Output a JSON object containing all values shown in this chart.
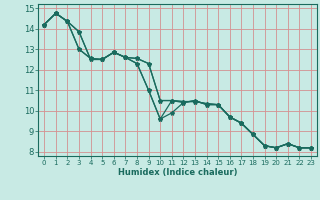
{
  "xlabel": "Humidex (Indice chaleur)",
  "xlim": [
    -0.5,
    23.5
  ],
  "ylim": [
    7.8,
    15.2
  ],
  "yticks": [
    8,
    9,
    10,
    11,
    12,
    13,
    14,
    15
  ],
  "xticks": [
    0,
    1,
    2,
    3,
    4,
    5,
    6,
    7,
    8,
    9,
    10,
    11,
    12,
    13,
    14,
    15,
    16,
    17,
    18,
    19,
    20,
    21,
    22,
    23
  ],
  "bg_color": "#c8eae4",
  "grid_color_red": "#e88888",
  "grid_color_teal": "#88cccc",
  "line_color": "#1a6b5e",
  "series": [
    {
      "x": [
        0,
        1,
        2,
        3,
        4,
        5,
        6,
        7,
        8,
        9,
        10,
        11,
        12,
        13,
        14,
        15,
        16,
        17,
        18,
        19,
        20,
        21,
        22,
        23
      ],
      "y": [
        14.2,
        14.75,
        14.35,
        13.85,
        12.5,
        12.5,
        12.85,
        12.6,
        12.55,
        12.3,
        10.5,
        10.5,
        10.45,
        10.45,
        10.35,
        10.3,
        9.7,
        9.4,
        8.85,
        8.3,
        8.2,
        8.4,
        8.2,
        8.2
      ]
    },
    {
      "x": [
        0,
        1,
        2,
        3,
        4,
        5,
        6,
        7,
        8,
        9,
        10,
        11,
        12,
        13,
        14,
        15,
        16,
        17,
        18,
        19,
        20,
        21,
        22,
        23
      ],
      "y": [
        14.2,
        14.75,
        14.35,
        13.85,
        12.5,
        12.5,
        12.85,
        12.6,
        12.55,
        12.3,
        10.5,
        10.5,
        10.45,
        10.45,
        10.35,
        10.3,
        9.7,
        9.4,
        8.85,
        8.3,
        8.2,
        8.4,
        8.2,
        8.2
      ]
    },
    {
      "x": [
        0,
        1,
        2,
        3,
        4,
        5,
        6,
        7,
        8,
        9,
        10,
        11,
        12,
        13,
        14,
        15,
        16,
        17,
        18,
        19,
        20,
        21,
        22,
        23
      ],
      "y": [
        14.2,
        14.75,
        14.35,
        13.0,
        12.55,
        12.5,
        12.85,
        12.6,
        12.3,
        11.0,
        9.6,
        10.5,
        10.4,
        10.5,
        10.3,
        10.3,
        9.7,
        9.4,
        8.85,
        8.3,
        8.2,
        8.4,
        8.2,
        8.2
      ]
    },
    {
      "x": [
        0,
        1,
        2,
        3,
        4,
        5,
        6,
        7,
        8,
        9,
        10,
        11,
        12,
        13,
        14,
        15,
        16,
        17,
        18,
        19,
        20,
        21,
        22,
        23
      ],
      "y": [
        14.2,
        14.75,
        14.35,
        13.0,
        12.55,
        12.5,
        12.85,
        12.6,
        12.3,
        11.0,
        9.6,
        9.9,
        10.4,
        10.5,
        10.3,
        10.3,
        9.7,
        9.4,
        8.85,
        8.3,
        8.2,
        8.4,
        8.2,
        8.2
      ]
    }
  ]
}
